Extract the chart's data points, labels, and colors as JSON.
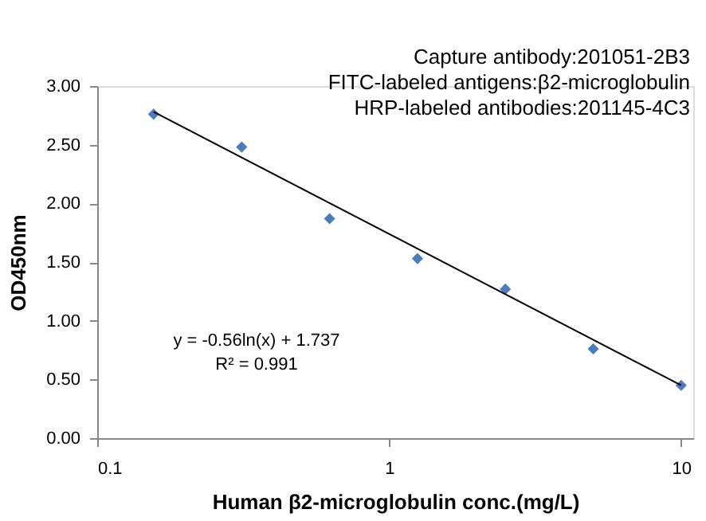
{
  "chart_data": {
    "type": "scatter",
    "xlabel": "Human β2-microglobulin conc.(mg/L)",
    "ylabel": "OD450nm",
    "log": "x",
    "xlim": [
      0.1,
      11
    ],
    "xticks": [
      0.1,
      1,
      10
    ],
    "ylim": [
      0,
      3
    ],
    "yticks": [
      {
        "value": 0,
        "label": "0.00"
      },
      {
        "value": 0.5,
        "label": "0.50"
      },
      {
        "value": 1,
        "label": "1.00"
      },
      {
        "value": 1.5,
        "label": "1.50"
      },
      {
        "value": 2,
        "label": "2.00"
      },
      {
        "value": 2.5,
        "label": "2.50"
      },
      {
        "value": 3,
        "label": "3.00"
      }
    ],
    "grid": false,
    "marker": "diamond",
    "series": [
      {
        "color": "#4a7ebb",
        "x": [
          0.156,
          0.3125,
          0.625,
          1.25,
          2.5,
          5,
          10
        ],
        "values": [
          2.76,
          2.48,
          1.87,
          1.53,
          1.27,
          0.76,
          0.45
        ]
      },
      {
        "type": "line",
        "marker": "none",
        "color": "#000000",
        "x": [
          0.156,
          10
        ],
        "values": [
          2.78,
          0.45
        ]
      }
    ],
    "annotations": [
      "Capture antibody:201051-2B3",
      "FITC-labeled antigens:β2-microglobulin",
      "HRP-labeled antibodies:201145-4C3",
      "y = -0.56ln(x) + 1.737",
      "R² = 0.991"
    ]
  }
}
